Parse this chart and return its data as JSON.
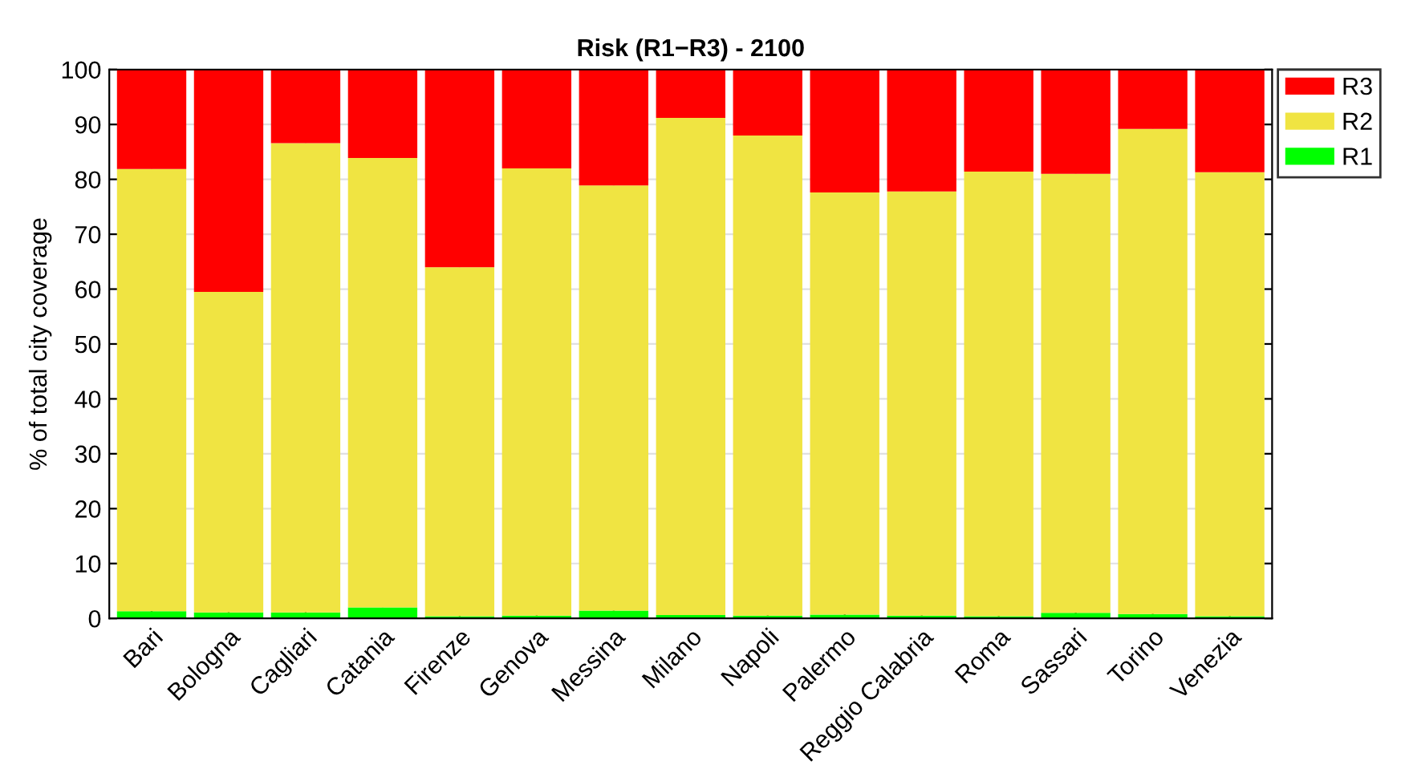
{
  "chart_data": {
    "type": "bar",
    "title": "Risk (R1−R3) - 2100",
    "ylabel": "% of total city coverage",
    "categories": [
      "Bari",
      "Bologna",
      "Cagliari",
      "Catania",
      "Firenze",
      "Genova",
      "Messina",
      "Milano",
      "Napoli",
      "Palermo",
      "Reggio Calabria",
      "Roma",
      "Sassari",
      "Torino",
      "Venezia"
    ],
    "stacked": true,
    "series": [
      {
        "name": "R1",
        "color": "#00ff00",
        "values": [
          1.3,
          1.1,
          1.1,
          2.0,
          0.4,
          0.5,
          1.4,
          0.6,
          0.5,
          0.7,
          0.5,
          0.4,
          1.0,
          0.8,
          0.4
        ]
      },
      {
        "name": "R2",
        "color": "#f0e442",
        "values": [
          80.6,
          58.4,
          85.5,
          81.9,
          63.6,
          81.5,
          77.5,
          90.6,
          87.5,
          76.9,
          77.3,
          81.0,
          80.0,
          88.4,
          80.9
        ]
      },
      {
        "name": "R3",
        "color": "#ff0000",
        "values": [
          18.1,
          40.5,
          13.4,
          16.1,
          36.0,
          18.0,
          21.1,
          8.8,
          12.0,
          22.4,
          22.2,
          18.6,
          19.0,
          10.8,
          18.7
        ]
      }
    ],
    "ylim": [
      0,
      100
    ],
    "yticks": [
      0,
      10,
      20,
      30,
      40,
      50,
      60,
      70,
      80,
      90,
      100
    ],
    "grid": true,
    "legend": "top right"
  }
}
